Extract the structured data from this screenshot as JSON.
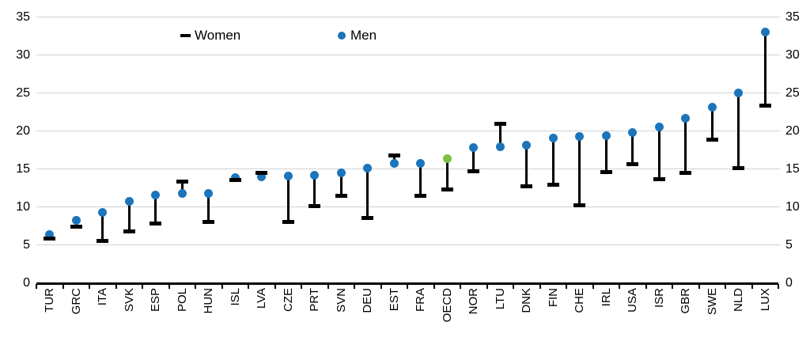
{
  "chart_data": {
    "type": "scatter",
    "variant": "dumbbell",
    "title": "",
    "xlabel": "",
    "ylabel": "",
    "ylim": [
      0,
      35
    ],
    "ytick_step": 5,
    "y_axis_sides": [
      "left",
      "right"
    ],
    "grid": true,
    "legend_position": "top-inside",
    "categories": [
      "TUR",
      "GRC",
      "ITA",
      "SVK",
      "ESP",
      "POL",
      "HUN",
      "ISL",
      "LVA",
      "CZE",
      "PRT",
      "SVN",
      "DEU",
      "EST",
      "FRA",
      "OECD",
      "NOR",
      "LTU",
      "DNK",
      "FIN",
      "CHE",
      "IRL",
      "USA",
      "ISR",
      "GBR",
      "SWE",
      "NLD",
      "LUX"
    ],
    "series": [
      {
        "name": "Women",
        "marker": "dash",
        "color": "#000000",
        "values": [
          5.8,
          7.4,
          5.5,
          6.8,
          7.8,
          13.3,
          8.0,
          13.5,
          14.5,
          8.0,
          10.1,
          11.5,
          8.5,
          16.8,
          11.5,
          12.3,
          14.7,
          20.9,
          12.7,
          12.9,
          10.2,
          14.6,
          15.6,
          13.6,
          14.5,
          18.9,
          15.1,
          23.3
        ]
      },
      {
        "name": "Men",
        "marker": "dot",
        "color": "#1b75bc",
        "values": [
          6.4,
          8.2,
          9.3,
          10.7,
          11.6,
          11.8,
          11.8,
          13.9,
          14.0,
          14.1,
          14.2,
          14.5,
          15.1,
          15.7,
          15.7,
          16.4,
          17.8,
          17.9,
          18.1,
          19.1,
          19.3,
          19.4,
          19.8,
          20.5,
          21.7,
          23.1,
          25.0,
          33.0
        ]
      }
    ],
    "highlight_category": "OECD",
    "highlight_color": "#7ac143",
    "colors": {
      "men": "#1b75bc",
      "women": "#000000",
      "oecd_highlight": "#7ac143",
      "gridline": "#d2d2d2",
      "axis": "#000000"
    }
  }
}
